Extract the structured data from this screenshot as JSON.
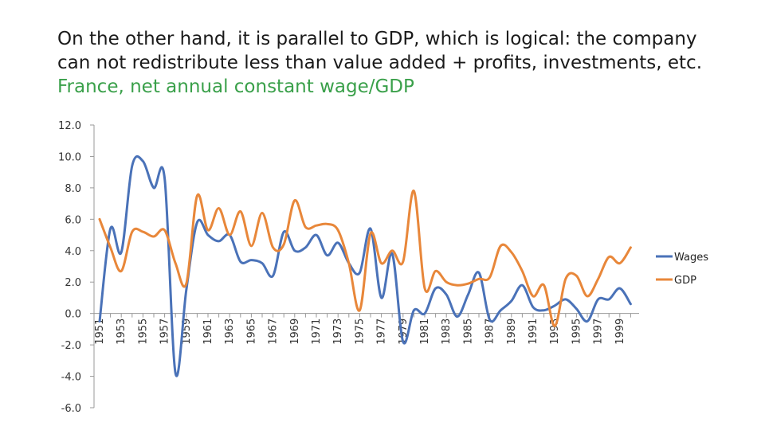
{
  "title": {
    "line1": "On the other hand, it is parallel to GDP, which is logical: the company",
    "line2": "can not redistribute less than value added + profits, investments, etc.",
    "subtitle": "France, net annual constant wage/GDP"
  },
  "chart_data": {
    "type": "line",
    "ylim": [
      -6,
      12
    ],
    "yticks": [
      "12.0",
      "10.0",
      "8.0",
      "6.0",
      "4.0",
      "2.0",
      "0.0",
      "-2.0",
      "-4.0",
      "-6.0"
    ],
    "x": [
      1951,
      1952,
      1953,
      1954,
      1955,
      1956,
      1957,
      1958,
      1959,
      1960,
      1961,
      1962,
      1963,
      1964,
      1965,
      1966,
      1967,
      1968,
      1969,
      1970,
      1971,
      1972,
      1973,
      1974,
      1975,
      1976,
      1977,
      1978,
      1979,
      1980,
      1981,
      1982,
      1983,
      1984,
      1985,
      1986,
      1987,
      1988,
      1989,
      1990,
      1991,
      1992,
      1993,
      1994,
      1995,
      1996,
      1997,
      1998,
      1999,
      2000
    ],
    "xtick_labels": [
      "1951",
      "1953",
      "1955",
      "1957",
      "1959",
      "1961",
      "1963",
      "1965",
      "1967",
      "1969",
      "1971",
      "1973",
      "1975",
      "1977",
      "1979",
      "1981",
      "1983",
      "1985",
      "1987",
      "1989",
      "1991",
      "1993",
      "1995",
      "1997",
      "1999"
    ],
    "series": [
      {
        "name": "Wages",
        "color": "#4a72b8",
        "values": [
          -0.5,
          5.4,
          3.9,
          9.4,
          9.7,
          8.0,
          8.6,
          -3.8,
          1.5,
          5.8,
          5.0,
          4.6,
          5.0,
          3.3,
          3.4,
          3.2,
          2.4,
          5.2,
          4.0,
          4.2,
          5.0,
          3.7,
          4.5,
          3.2,
          2.6,
          5.4,
          1.0,
          3.8,
          -1.8,
          0.2,
          0.0,
          1.6,
          1.2,
          -0.2,
          1.2,
          2.6,
          -0.4,
          0.2,
          0.8,
          1.8,
          0.4,
          0.2,
          0.5,
          0.9,
          0.3,
          -0.5,
          0.9,
          0.9,
          1.6,
          0.6
        ]
      },
      {
        "name": "GDP",
        "color": "#e8873a",
        "values": [
          6.0,
          4.2,
          2.7,
          5.2,
          5.2,
          4.9,
          5.3,
          3.2,
          1.9,
          7.5,
          5.3,
          6.7,
          5.0,
          6.5,
          4.3,
          6.4,
          4.2,
          4.4,
          7.2,
          5.5,
          5.6,
          5.7,
          5.3,
          3.2,
          0.2,
          5.1,
          3.2,
          4.0,
          3.3,
          7.8,
          1.6,
          2.7,
          2.0,
          1.8,
          1.9,
          2.2,
          2.3,
          4.3,
          3.9,
          2.7,
          1.1,
          1.8,
          -0.8,
          2.2,
          2.4,
          1.1,
          2.2,
          3.6,
          3.2,
          4.2
        ]
      }
    ]
  }
}
